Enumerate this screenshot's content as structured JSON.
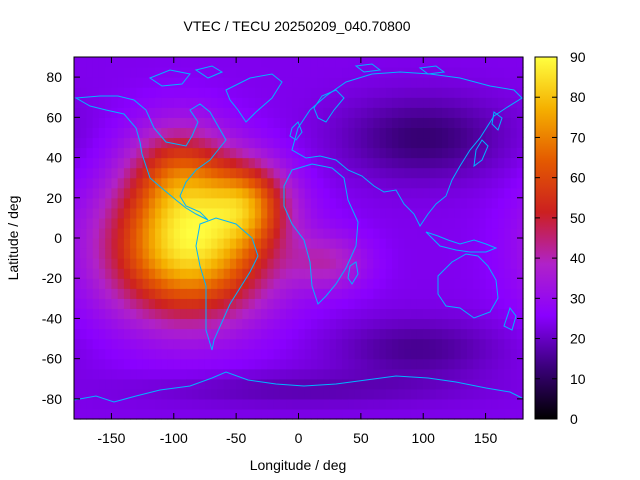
{
  "chart_data": {
    "type": "heatmap",
    "title": "VTEC / TECU 20250209_040.70800",
    "xlabel": "Longitude / deg",
    "ylabel": "Latitude / deg",
    "xlim": [
      -180,
      180
    ],
    "ylim": [
      -90,
      90
    ],
    "xticks": [
      -150,
      -100,
      -50,
      0,
      50,
      100,
      150
    ],
    "yticks": [
      -80,
      -60,
      -40,
      -20,
      0,
      20,
      40,
      60,
      80
    ],
    "colorbar": {
      "range": [
        0,
        90
      ],
      "ticks": [
        0,
        10,
        20,
        30,
        40,
        50,
        60,
        70,
        80,
        90
      ],
      "colormap": [
        "#000000",
        "#3a007a",
        "#8a00ff",
        "#b022c8",
        "#cc2020",
        "#e45a00",
        "#f5b000",
        "#ffff40"
      ]
    },
    "field": {
      "background": 24,
      "centers": [
        {
          "lon": -88,
          "lat": -5,
          "amp": 60,
          "sx": 45,
          "sy": 24
        },
        {
          "lon": -95,
          "lat": 32,
          "amp": 28,
          "sx": 28,
          "sy": 18
        },
        {
          "lon": -40,
          "lat": 18,
          "amp": 30,
          "sx": 22,
          "sy": 14
        },
        {
          "lon": 25,
          "lat": -12,
          "amp": 14,
          "sx": 22,
          "sy": 10
        },
        {
          "lon": 100,
          "lat": 50,
          "amp": -12,
          "sx": 45,
          "sy": 14
        },
        {
          "lon": 95,
          "lat": -55,
          "amp": -9,
          "sx": 45,
          "sy": 10
        },
        {
          "lon": 0,
          "lat": -75,
          "amp": -6,
          "sx": 90,
          "sy": 6
        }
      ]
    },
    "coastline_color": "#00b4ff"
  }
}
